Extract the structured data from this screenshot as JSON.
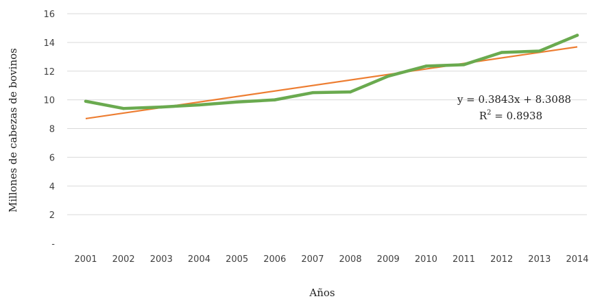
{
  "chart_data": {
    "type": "line",
    "xlabel": "Años",
    "ylabel": "Millones de cabezas de bovinos",
    "x": [
      "2001",
      "2002",
      "2003",
      "2004",
      "2005",
      "2006",
      "2007",
      "2008",
      "2009",
      "2010",
      "2011",
      "2012",
      "2013",
      "2014"
    ],
    "ylim": [
      0,
      16
    ],
    "yticks": [
      0,
      2,
      4,
      6,
      8,
      10,
      12,
      14,
      16
    ],
    "ytick_labels": [
      "-",
      "2",
      "4",
      "6",
      "8",
      "10",
      "12",
      "14",
      "16"
    ],
    "grid": true,
    "series": [
      {
        "values": [
          9.9,
          9.4,
          9.5,
          9.65,
          9.85,
          10.0,
          10.5,
          10.55,
          11.65,
          12.35,
          12.45,
          13.3,
          13.4,
          14.5
        ]
      }
    ],
    "trendline": {
      "slope": 0.3843,
      "intercept": 8.3088
    },
    "annotation": {
      "equation": "y = 0.3843x + 8.3088",
      "r2_prefix": "R",
      "r2_sup": "2",
      "r2_value": " = 0.8938"
    },
    "colors": {
      "series": "#6aaa4f",
      "trendline": "#ed7d31",
      "grid": "#d9d9d9"
    }
  }
}
